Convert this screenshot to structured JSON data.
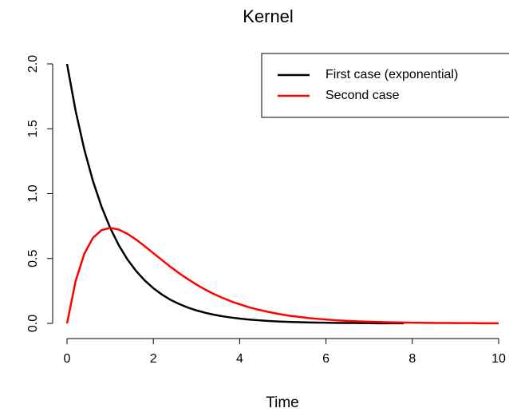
{
  "chart_data": {
    "type": "line",
    "title": "Kernel",
    "x_label": "Time",
    "x": [
      0,
      0.2,
      0.4,
      0.6,
      0.8,
      1,
      1.2,
      1.4,
      1.6,
      1.8,
      2,
      2.2,
      2.4,
      2.6,
      2.8,
      3,
      3.2,
      3.4,
      3.6,
      3.8,
      4,
      4.2,
      4.4,
      4.6,
      4.8,
      5,
      5.2,
      5.4,
      5.6,
      5.8,
      6,
      6.2,
      6.4,
      6.6,
      6.8,
      7,
      7.2,
      7.4,
      7.6,
      7.8,
      8,
      8.2,
      8.4,
      8.6,
      8.8,
      9,
      9.2,
      9.4,
      9.6,
      9.8,
      10
    ],
    "series": [
      {
        "name": "First case (exponential)",
        "color": "#000000",
        "values": [
          2,
          1.637,
          1.341,
          1.098,
          0.899,
          0.736,
          0.602,
          0.493,
          0.404,
          0.331,
          0.271,
          0.222,
          0.181,
          0.149,
          0.122,
          0.1,
          0.082,
          0.067,
          0.055,
          0.045,
          0.037,
          0.03,
          0.025,
          0.02,
          0.016,
          0.013,
          0.011,
          0.009,
          0.007,
          0.006,
          0.005,
          0.004,
          0.003,
          0.003,
          0.002,
          0.002,
          0.001,
          0.001,
          0.001,
          0.001,
          null,
          null,
          null,
          null,
          null,
          null,
          null,
          null,
          null,
          null,
          null
        ]
      },
      {
        "name": "Second case",
        "color": "#ff0000",
        "values": [
          0,
          0.327,
          0.536,
          0.659,
          0.719,
          0.736,
          0.723,
          0.69,
          0.646,
          0.595,
          0.541,
          0.488,
          0.435,
          0.386,
          0.341,
          0.299,
          0.261,
          0.227,
          0.197,
          0.17,
          0.147,
          0.126,
          0.108,
          0.093,
          0.079,
          0.067,
          0.057,
          0.049,
          0.041,
          0.035,
          0.03,
          0.025,
          0.021,
          0.018,
          0.015,
          0.013,
          0.011,
          0.009,
          0.008,
          0.006,
          0.005,
          0.005,
          0.004,
          0.003,
          0.003,
          0.002,
          0.002,
          0.002,
          0.001,
          0.001,
          0.001
        ]
      }
    ],
    "xlim": [
      0,
      10
    ],
    "ylim": [
      0,
      2
    ],
    "xticks": [
      0,
      2,
      4,
      6,
      8,
      10
    ],
    "yticks": [
      {
        "value": 0,
        "label": "0.0"
      },
      {
        "value": 0.5,
        "label": "0.5"
      },
      {
        "value": 1,
        "label": "1.0"
      },
      {
        "value": 1.5,
        "label": "1.5"
      },
      {
        "value": 2,
        "label": "2.0"
      }
    ],
    "legend": "top-right"
  }
}
